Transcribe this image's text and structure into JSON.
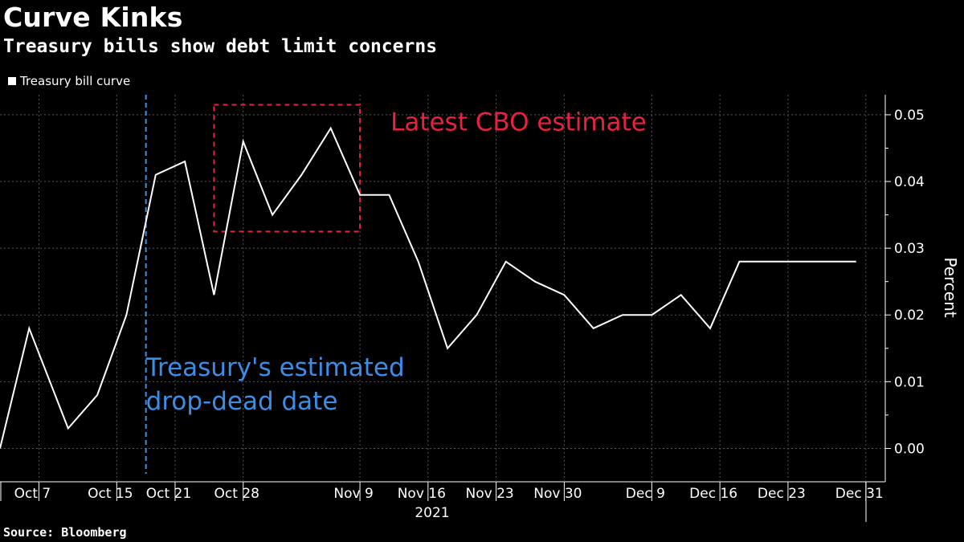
{
  "chart_data": {
    "type": "line",
    "title": "Curve Kinks",
    "subtitle": "Treasury bills show debt limit concerns",
    "source": "Source: Bloomberg",
    "ylabel": "Percent",
    "ylim": [
      -0.005,
      0.053
    ],
    "yticks": [
      "0.00",
      "0.01",
      "0.02",
      "0.03",
      "0.04",
      "0.05"
    ],
    "xlim": [
      "2021-10-03",
      "2022-01-02"
    ],
    "xticks": [
      {
        "label": "Oct 7",
        "date": "2021-10-07"
      },
      {
        "label": "Oct 15",
        "date": "2021-10-15"
      },
      {
        "label": "Oct 21",
        "date": "2021-10-21"
      },
      {
        "label": "Oct 28",
        "date": "2021-10-28"
      },
      {
        "label": "Nov 9",
        "date": "2021-11-09"
      },
      {
        "label": "Nov 16",
        "date": "2021-11-16"
      },
      {
        "label": "Nov 23",
        "date": "2021-11-23"
      },
      {
        "label": "Nov 30",
        "date": "2021-11-30"
      },
      {
        "label": "Dec 9",
        "date": "2021-12-09"
      },
      {
        "label": "Dec 16",
        "date": "2021-12-16"
      },
      {
        "label": "Dec 23",
        "date": "2021-12-23"
      },
      {
        "label": "Dec 31",
        "date": "2021-12-31"
      }
    ],
    "year_label": "2021",
    "series": [
      {
        "name": "Treasury bill curve",
        "color": "#ffffff",
        "x": [
          "2021-10-03",
          "2021-10-06",
          "2021-10-10",
          "2021-10-13",
          "2021-10-16",
          "2021-10-19",
          "2021-10-22",
          "2021-10-25",
          "2021-10-28",
          "2021-10-31",
          "2021-11-03",
          "2021-11-06",
          "2021-11-09",
          "2021-11-12",
          "2021-11-15",
          "2021-11-18",
          "2021-11-21",
          "2021-11-24",
          "2021-11-27",
          "2021-11-30",
          "2021-12-03",
          "2021-12-06",
          "2021-12-09",
          "2021-12-12",
          "2021-12-15",
          "2021-12-18",
          "2021-12-21",
          "2021-12-24",
          "2021-12-27",
          "2021-12-30"
        ],
        "y": [
          0.0,
          0.018,
          0.003,
          0.008,
          0.02,
          0.041,
          0.043,
          0.023,
          0.046,
          0.035,
          0.041,
          0.048,
          0.038,
          0.038,
          0.028,
          0.015,
          0.02,
          0.028,
          0.025,
          0.023,
          0.018,
          0.02,
          0.02,
          0.023,
          0.018,
          0.028,
          0.028,
          0.028,
          0.028,
          0.028
        ]
      }
    ],
    "annotations": [
      {
        "text": "Latest CBO estimate",
        "color": "#e8213f",
        "x_range": [
          "2021-10-25",
          "2021-11-09"
        ],
        "y_range": [
          0.0325,
          0.0515
        ]
      },
      {
        "text_lines": [
          "Treasury's estimated",
          "drop-dead date"
        ],
        "color": "#3b8ee8",
        "x": "2021-10-18"
      }
    ],
    "grid": true,
    "legend_position": "top-left"
  }
}
